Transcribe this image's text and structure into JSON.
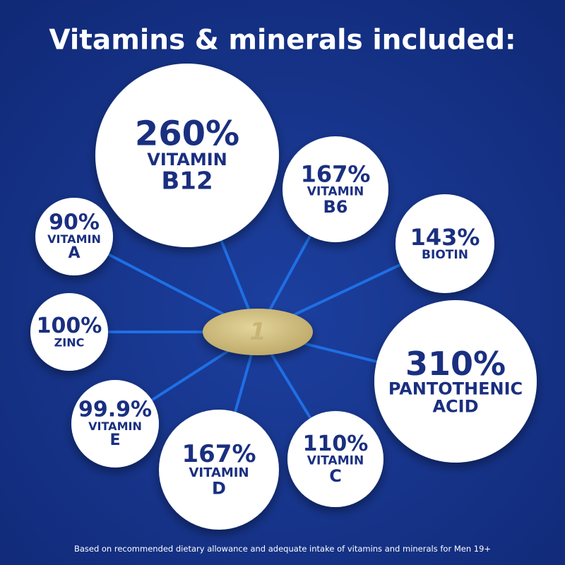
{
  "title": "Vitamins & minerals included:",
  "nodes": [
    {
      "value": "260%",
      "label": [
        "VITAMIN",
        "B12"
      ]
    },
    {
      "value": "167%",
      "label": [
        "VITAMIN",
        "B6"
      ]
    },
    {
      "value": "90%",
      "label": [
        "VITAMIN",
        "A"
      ]
    },
    {
      "value": "143%",
      "label": [
        "BIOTIN"
      ]
    },
    {
      "value": "100%",
      "label": [
        "ZINC"
      ]
    },
    {
      "value": "310%",
      "label": [
        "PANTOTHENIC",
        "ACID"
      ]
    },
    {
      "value": "99.9%",
      "label": [
        "VITAMIN",
        "E"
      ]
    },
    {
      "value": "167%",
      "label": [
        "VITAMIN",
        "D"
      ]
    },
    {
      "value": "110%",
      "label": [
        "VITAMIN",
        "C"
      ]
    }
  ],
  "footnote": "Based on recommended dietary allowance and adequate intake of vitamins and minerals for Men 19+"
}
